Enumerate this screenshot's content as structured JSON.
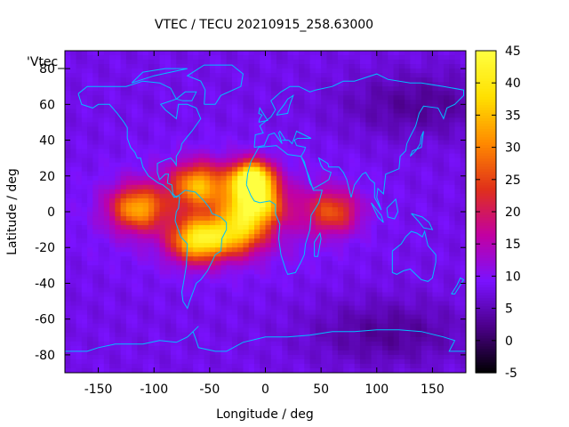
{
  "chart_data": {
    "type": "heatmap",
    "title": "VTEC / TECU 20210915_258.63000",
    "xlabel": "Longitude / deg",
    "ylabel": "Latitude / deg",
    "key_label": "'Vtec_",
    "xlim": [
      -180,
      180
    ],
    "ylim": [
      -90,
      90
    ],
    "xticks": [
      -150,
      -100,
      -50,
      0,
      50,
      100,
      150
    ],
    "yticks": [
      -80,
      -60,
      -40,
      -20,
      0,
      20,
      40,
      60,
      80
    ],
    "colorbar": {
      "range": [
        -5,
        45
      ],
      "ticks": [
        -5,
        0,
        5,
        10,
        15,
        20,
        25,
        30,
        35,
        40,
        45
      ],
      "colormap": [
        "#000000",
        "#4b0088",
        "#7a12ff",
        "#c200a2",
        "#e0301a",
        "#ff8a00",
        "#ffe000",
        "#ffff40"
      ]
    },
    "background_vtec": 8,
    "features": [
      {
        "name": "equatorial anomaly peak Atlantic/West Africa",
        "lon": -12,
        "lat": 18,
        "vtec": 44
      },
      {
        "name": "equatorial crest Atlantic",
        "lon": -10,
        "lat": 4,
        "vtec": 36
      },
      {
        "name": "northern crest Americas",
        "lon": -60,
        "lat": 15,
        "vtec": 30
      },
      {
        "name": "central Pacific enhancement",
        "lon": -115,
        "lat": 2,
        "vtec": 30
      },
      {
        "name": "southern crest South America",
        "lon": -60,
        "lat": -16,
        "vtec": 36
      },
      {
        "name": "southern crest Atlantic",
        "lon": -25,
        "lat": -12,
        "vtec": 28
      },
      {
        "name": "Indian Ocean tongue",
        "lon": 60,
        "lat": 0,
        "vtec": 24
      },
      {
        "name": "high-latitude south depletion",
        "lon": 110,
        "lat": -68,
        "vtec": 3
      },
      {
        "name": "north Pacific depletion",
        "lon": 140,
        "lat": 60,
        "vtec": 3
      }
    ]
  }
}
